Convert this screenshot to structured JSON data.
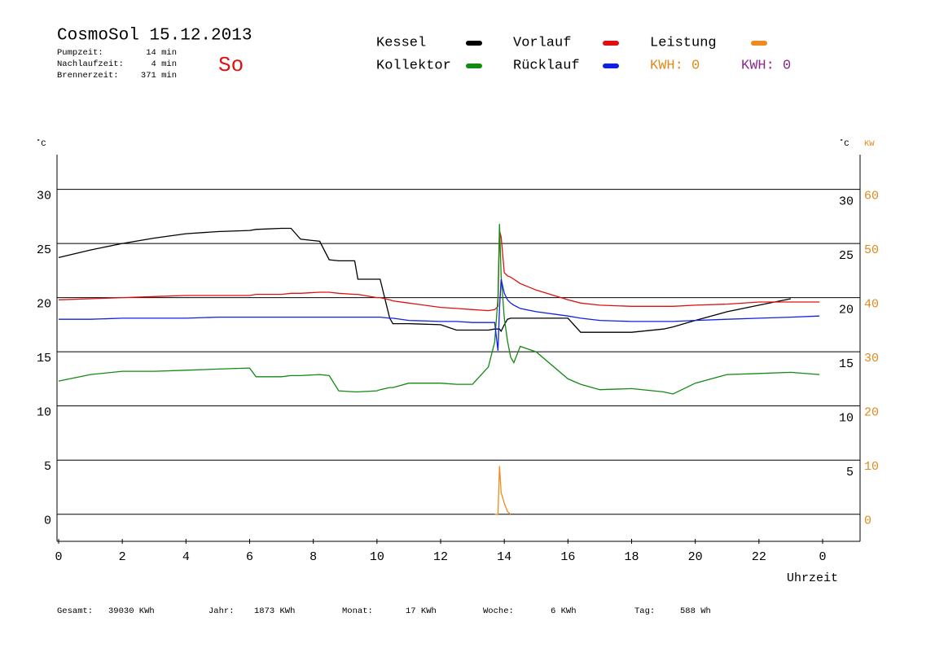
{
  "chart_data": {
    "type": "line",
    "title": "CosmoSol 15.12.2013",
    "info": [
      {
        "label": "Pumpzeit:",
        "value": "14 min"
      },
      {
        "label": "Nachlaufzeit:",
        "value": "4 min"
      },
      {
        "label": "Brennerzeit:",
        "value": "371 min"
      }
    ],
    "day": "So",
    "y_label": "˚C",
    "y2_label_celsius": "˚C",
    "y2_label": "KW",
    "x_label": "Uhrzeit",
    "kwh_labels": [
      {
        "text": "KWH: 0",
        "color": "#e08a1e"
      },
      {
        "text": "KWH: 0",
        "color": "#8a2b8f"
      }
    ],
    "stats": [
      {
        "label": "Gesamt:",
        "value": "39030 KWh"
      },
      {
        "label": "Jahr:",
        "value": "1873 KWh"
      },
      {
        "label": "Monat:",
        "value": "17 KWh"
      },
      {
        "label": "Woche:",
        "value": "6 KWh"
      },
      {
        "label": "Tag:",
        "value": "588 Wh"
      }
    ],
    "xlim": [
      0,
      24
    ],
    "xticks": [
      0,
      2,
      4,
      6,
      8,
      10,
      12,
      14,
      16,
      18,
      20,
      22,
      {
        "value": 24,
        "label": "0"
      }
    ],
    "ylim": [
      -2.5,
      33.2
    ],
    "yticks": [
      0,
      5,
      10,
      15,
      20,
      25,
      30
    ],
    "y2lim": [
      -5,
      66.4
    ],
    "y2ticks": [
      0,
      10,
      20,
      30,
      40,
      50,
      60
    ],
    "grid": true,
    "x": [
      0,
      1,
      2,
      3,
      4,
      5,
      6,
      6.2,
      7,
      7.3,
      7.6,
      8.2,
      8.5,
      8.8,
      9.3,
      9.4,
      10,
      10.1,
      10.4,
      10.5,
      11,
      12,
      12.5,
      13,
      13.5,
      13.7,
      13.8,
      13.85,
      13.9,
      14,
      14.1,
      14.2,
      14.3,
      14.5,
      15,
      16,
      16.4,
      17,
      18,
      19,
      19.3,
      20,
      21,
      22,
      23,
      23.9
    ],
    "series": [
      {
        "name": "Kessel",
        "color": "#000000",
        "values": [
          23.7,
          24.4,
          25,
          25.5,
          25.9,
          26.1,
          26.2,
          26.3,
          26.4,
          26.4,
          25.4,
          25.2,
          23.5,
          23.4,
          23.4,
          21.7,
          21.7,
          21.7,
          18.1,
          17.6,
          17.6,
          17.5,
          17,
          17,
          17,
          17.1,
          17.1,
          17.1,
          16.9,
          17.5,
          18,
          18.1,
          18.1,
          18.1,
          18.1,
          18.1,
          16.8,
          16.8,
          16.8,
          17.1,
          17.3,
          17.9,
          18.7,
          19.3,
          19.9,
          null
        ]
      },
      {
        "name": "Vorlauf",
        "color": "#e01010",
        "values": [
          19.8,
          19.9,
          20,
          20.1,
          20.2,
          20.2,
          20.2,
          20.3,
          20.3,
          20.4,
          20.4,
          20.5,
          20.5,
          20.4,
          20.3,
          20.3,
          20,
          20,
          19.8,
          19.7,
          19.5,
          19.1,
          19,
          18.9,
          18.8,
          18.9,
          19.2,
          26.2,
          25.6,
          22.3,
          22,
          21.9,
          21.7,
          21.3,
          20.7,
          19.8,
          19.5,
          19.3,
          19.2,
          19.2,
          19.2,
          19.3,
          19.4,
          19.6,
          19.6,
          19.6
        ]
      },
      {
        "name": "Leistung",
        "color": "#f08a1c",
        "axis": "y2",
        "values": [
          null,
          null,
          null,
          null,
          null,
          null,
          null,
          null,
          null,
          null,
          null,
          null,
          null,
          null,
          null,
          null,
          null,
          null,
          null,
          null,
          null,
          null,
          null,
          null,
          null,
          0,
          0,
          8.9,
          4,
          2,
          0.5,
          0,
          null,
          null,
          null,
          null,
          null,
          null,
          null,
          null,
          null,
          null,
          null,
          null,
          null,
          null
        ]
      },
      {
        "name": "Kollektor",
        "color": "#138a13",
        "values": [
          12.3,
          12.9,
          13.2,
          13.2,
          13.3,
          13.4,
          13.5,
          12.7,
          12.7,
          12.8,
          12.8,
          12.9,
          12.8,
          11.4,
          11.3,
          11.3,
          11.4,
          11.5,
          11.7,
          11.7,
          12.1,
          12.1,
          12,
          12,
          13.6,
          15.9,
          20,
          26.8,
          22,
          18.1,
          16,
          14.5,
          14,
          15.5,
          15,
          12.5,
          12,
          11.5,
          11.6,
          11.3,
          11.1,
          12.1,
          12.9,
          13,
          13.1,
          12.9
        ]
      },
      {
        "name": "Rücklauf",
        "color": "#1020e0",
        "values": [
          18,
          18,
          18.1,
          18.1,
          18.1,
          18.2,
          18.2,
          18.2,
          18.2,
          18.2,
          18.2,
          18.2,
          18.2,
          18.2,
          18.2,
          18.2,
          18.2,
          18.2,
          18.1,
          18.1,
          17.9,
          17.8,
          17.8,
          17.7,
          17.7,
          17.7,
          15.1,
          19,
          21.7,
          20.4,
          19.8,
          19.5,
          19.3,
          19,
          18.7,
          18.3,
          18.1,
          17.9,
          17.8,
          17.8,
          17.8,
          17.9,
          18,
          18.1,
          18.2,
          18.3
        ]
      }
    ]
  }
}
